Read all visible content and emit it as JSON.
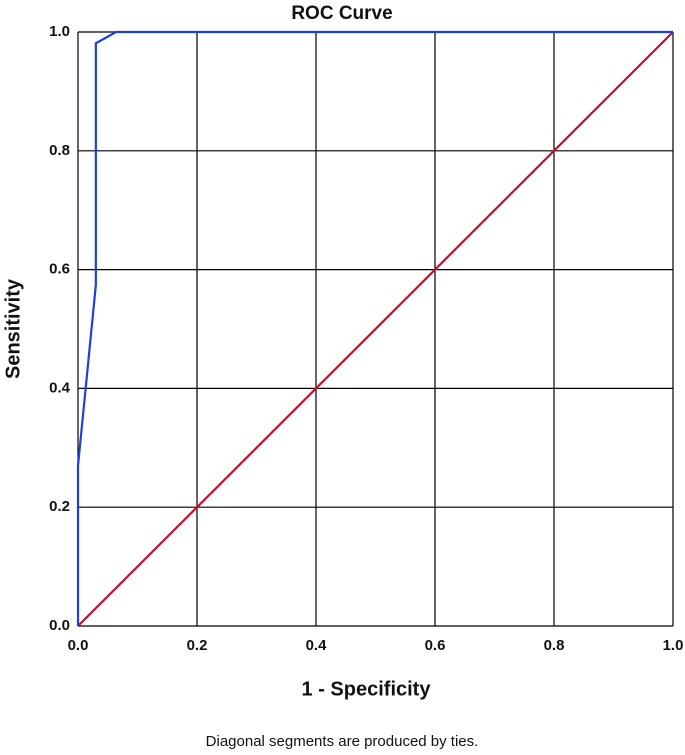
{
  "chart_data": {
    "type": "line",
    "title": "ROC Curve",
    "x_label": "1 - Specificity",
    "y_label": "Sensitivity",
    "annotation": "Diagonal segments are produced by ties.",
    "series": [
      {
        "color": "#1f3fdc",
        "x": [
          0,
          0,
          0.03,
          0.03,
          0.064,
          1
        ],
        "values": [
          0,
          0.27,
          0.574,
          0.981,
          1,
          1
        ]
      },
      {
        "color": "#c0102a",
        "x": [
          0,
          1
        ],
        "values": [
          0,
          1
        ]
      }
    ],
    "xlim": [
      0,
      1
    ],
    "ylim": [
      0,
      1
    ],
    "xticks": [
      {
        "value": 0,
        "label": "0.0"
      },
      0.2,
      0.4,
      0.6,
      0.8,
      {
        "value": 1,
        "label": "1.0"
      }
    ],
    "yticks": [
      {
        "value": 0,
        "label": "0.0"
      },
      0.2,
      0.4,
      0.6,
      0.8,
      {
        "value": 1,
        "label": "1.0"
      }
    ],
    "grid": true
  }
}
